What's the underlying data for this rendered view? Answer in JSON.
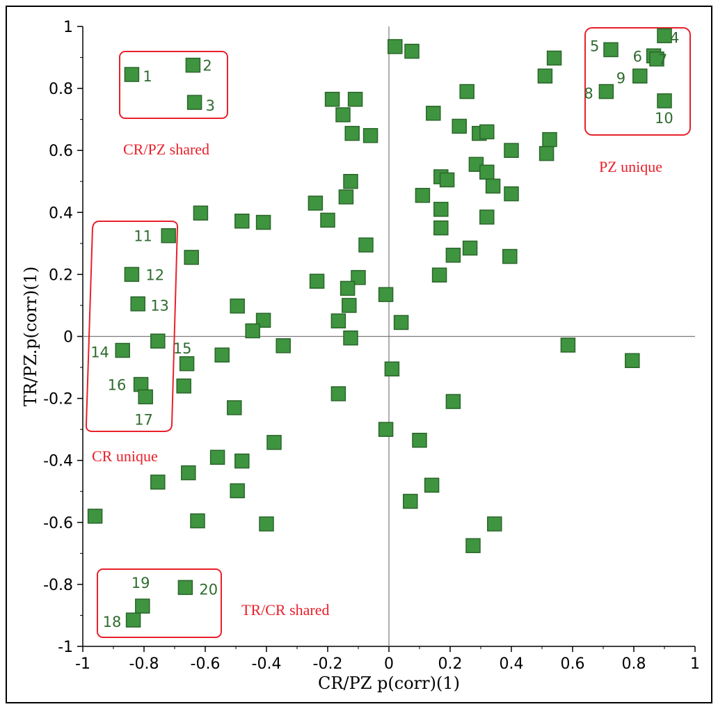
{
  "chart_data": {
    "type": "scatter",
    "xlabel": "CR/PZ p(corr)(1)",
    "ylabel": "TR/PZ.p(corr)(1)",
    "xlim": [
      -1,
      1
    ],
    "ylim": [
      -1,
      1
    ],
    "x_ticks": [
      "-1",
      "-0.8",
      "-0.6",
      "-0.4",
      "-0.2",
      "0",
      "0.2",
      "0.4",
      "0.6",
      "0.8",
      "1"
    ],
    "y_ticks": [
      "-1",
      "-0.8",
      "-0.6",
      "-0.4",
      "-0.2",
      "0",
      "0.2",
      "0.4",
      "0.6",
      "0.8",
      "1"
    ],
    "x_tick_values": [
      -1,
      -0.8,
      -0.6,
      -0.4,
      -0.2,
      0,
      0.2,
      0.4,
      0.6,
      0.8,
      1
    ],
    "y_tick_values": [
      -1,
      -0.8,
      -0.6,
      -0.4,
      -0.2,
      0,
      0.2,
      0.4,
      0.6,
      0.8,
      1
    ],
    "grid": false,
    "reference_lines": {
      "x": 0,
      "y": 0
    },
    "marker": {
      "shape": "square",
      "fill": "#3f9440",
      "stroke": "#2a662a"
    },
    "labeled_points": [
      {
        "label": "1",
        "x": -0.84,
        "y": 0.845
      },
      {
        "label": "2",
        "x": -0.64,
        "y": 0.875
      },
      {
        "label": "3",
        "x": -0.635,
        "y": 0.755
      },
      {
        "label": "4",
        "x": 0.9,
        "y": 0.97
      },
      {
        "label": "5",
        "x": 0.725,
        "y": 0.925
      },
      {
        "label": "6",
        "x": 0.865,
        "y": 0.905
      },
      {
        "label": "7",
        "x": 0.875,
        "y": 0.895
      },
      {
        "label": "8",
        "x": 0.71,
        "y": 0.79
      },
      {
        "label": "9",
        "x": 0.82,
        "y": 0.84
      },
      {
        "label": "10",
        "x": 0.9,
        "y": 0.76
      },
      {
        "label": "11",
        "x": -0.72,
        "y": 0.325
      },
      {
        "label": "12",
        "x": -0.84,
        "y": 0.2
      },
      {
        "label": "13",
        "x": -0.82,
        "y": 0.105
      },
      {
        "label": "14",
        "x": -0.87,
        "y": -0.045
      },
      {
        "label": "15",
        "x": -0.755,
        "y": -0.015
      },
      {
        "label": "16",
        "x": -0.81,
        "y": -0.155
      },
      {
        "label": "17",
        "x": -0.795,
        "y": -0.195
      },
      {
        "label": "18",
        "x": -0.835,
        "y": -0.915
      },
      {
        "label": "19",
        "x": -0.805,
        "y": -0.87
      },
      {
        "label": "20",
        "x": -0.665,
        "y": -0.81
      }
    ],
    "other_points": [
      {
        "x": 0.02,
        "y": 0.935
      },
      {
        "x": 0.075,
        "y": 0.92
      },
      {
        "x": -0.185,
        "y": 0.765
      },
      {
        "x": -0.15,
        "y": 0.715
      },
      {
        "x": -0.11,
        "y": 0.765
      },
      {
        "x": -0.12,
        "y": 0.655
      },
      {
        "x": -0.06,
        "y": 0.648
      },
      {
        "x": 0.145,
        "y": 0.72
      },
      {
        "x": 0.255,
        "y": 0.79
      },
      {
        "x": 0.23,
        "y": 0.678
      },
      {
        "x": 0.295,
        "y": 0.655
      },
      {
        "x": 0.32,
        "y": 0.66
      },
      {
        "x": 0.4,
        "y": 0.6
      },
      {
        "x": 0.51,
        "y": 0.84
      },
      {
        "x": 0.54,
        "y": 0.898
      },
      {
        "x": 0.525,
        "y": 0.635
      },
      {
        "x": 0.515,
        "y": 0.59
      },
      {
        "x": 0.285,
        "y": 0.555
      },
      {
        "x": 0.32,
        "y": 0.53
      },
      {
        "x": 0.17,
        "y": 0.515
      },
      {
        "x": 0.19,
        "y": 0.505
      },
      {
        "x": 0.34,
        "y": 0.485
      },
      {
        "x": 0.4,
        "y": 0.46
      },
      {
        "x": 0.11,
        "y": 0.455
      },
      {
        "x": 0.17,
        "y": 0.41
      },
      {
        "x": 0.32,
        "y": 0.385
      },
      {
        "x": 0.17,
        "y": 0.35
      },
      {
        "x": 0.265,
        "y": 0.285
      },
      {
        "x": 0.21,
        "y": 0.262
      },
      {
        "x": 0.395,
        "y": 0.258
      },
      {
        "x": 0.165,
        "y": 0.198
      },
      {
        "x": -0.125,
        "y": 0.5
      },
      {
        "x": -0.14,
        "y": 0.45
      },
      {
        "x": -0.24,
        "y": 0.43
      },
      {
        "x": -0.2,
        "y": 0.375
      },
      {
        "x": -0.075,
        "y": 0.295
      },
      {
        "x": -0.1,
        "y": 0.19
      },
      {
        "x": -0.135,
        "y": 0.155
      },
      {
        "x": -0.235,
        "y": 0.178
      },
      {
        "x": -0.01,
        "y": 0.135
      },
      {
        "x": -0.13,
        "y": 0.1
      },
      {
        "x": -0.165,
        "y": 0.05
      },
      {
        "x": 0.04,
        "y": 0.045
      },
      {
        "x": -0.125,
        "y": -0.005
      },
      {
        "x": -0.615,
        "y": 0.398
      },
      {
        "x": -0.48,
        "y": 0.372
      },
      {
        "x": -0.41,
        "y": 0.368
      },
      {
        "x": -0.645,
        "y": 0.255
      },
      {
        "x": -0.495,
        "y": 0.098
      },
      {
        "x": -0.41,
        "y": 0.052
      },
      {
        "x": -0.445,
        "y": 0.018
      },
      {
        "x": -0.345,
        "y": -0.03
      },
      {
        "x": -0.545,
        "y": -0.06
      },
      {
        "x": -0.66,
        "y": -0.088
      },
      {
        "x": -0.67,
        "y": -0.16
      },
      {
        "x": 0.01,
        "y": -0.105
      },
      {
        "x": -0.165,
        "y": -0.185
      },
      {
        "x": 0.21,
        "y": -0.21
      },
      {
        "x": -0.505,
        "y": -0.23
      },
      {
        "x": -0.01,
        "y": -0.3
      },
      {
        "x": 0.1,
        "y": -0.335
      },
      {
        "x": -0.375,
        "y": -0.342
      },
      {
        "x": -0.56,
        "y": -0.39
      },
      {
        "x": -0.48,
        "y": -0.402
      },
      {
        "x": -0.655,
        "y": -0.44
      },
      {
        "x": -0.755,
        "y": -0.47
      },
      {
        "x": 0.14,
        "y": -0.48
      },
      {
        "x": -0.495,
        "y": -0.498
      },
      {
        "x": 0.07,
        "y": -0.532
      },
      {
        "x": -0.96,
        "y": -0.58
      },
      {
        "x": -0.625,
        "y": -0.595
      },
      {
        "x": -0.4,
        "y": -0.605
      },
      {
        "x": 0.345,
        "y": -0.605
      },
      {
        "x": 0.275,
        "y": -0.675
      },
      {
        "x": 0.585,
        "y": -0.028
      },
      {
        "x": 0.795,
        "y": -0.078
      }
    ],
    "region_labels": [
      {
        "text": "CR/PZ shared"
      },
      {
        "text": "PZ unique"
      },
      {
        "text": "CR unique"
      },
      {
        "text": "TR/CR shared"
      }
    ]
  }
}
